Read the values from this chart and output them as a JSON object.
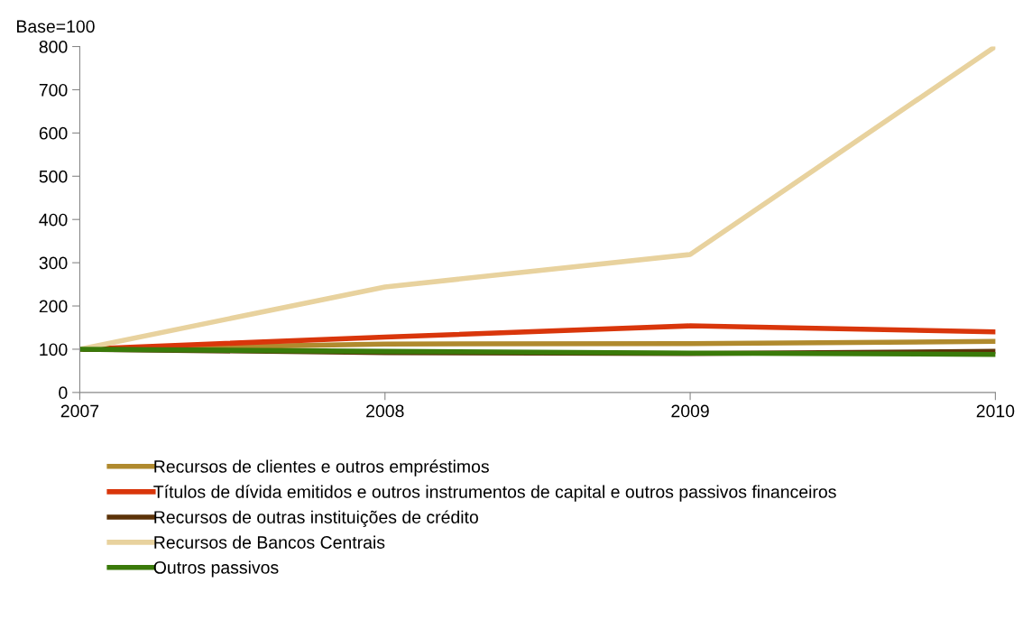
{
  "chart_data": {
    "type": "line",
    "ylabel": "Base=100",
    "x": [
      2007,
      2008,
      2009,
      2010
    ],
    "xlim": [
      2007,
      2010
    ],
    "xticks": [
      2007,
      2008,
      2009,
      2010
    ],
    "ylim": [
      0,
      800
    ],
    "yticks": [
      0,
      100,
      200,
      300,
      400,
      500,
      600,
      700,
      800
    ],
    "grid": false,
    "legend": "bottom",
    "marker": "none",
    "line_style": "solid",
    "series": [
      {
        "name": "Recursos de clientes e outros empréstimos",
        "color": "#b08a2e",
        "values": [
          100,
          112,
          113,
          118
        ]
      },
      {
        "name": "Títulos de dívida emitidos e outros instrumentos de capital e outros passivos financeiros",
        "color": "#d9360b",
        "values": [
          100,
          128,
          154,
          140
        ]
      },
      {
        "name": "Recursos de outras instituições de crédito",
        "color": "#5c3208",
        "values": [
          100,
          92,
          90,
          95
        ]
      },
      {
        "name": "Recursos de Bancos Centrais",
        "color": "#e8d29e",
        "values": [
          100,
          244,
          319,
          800
        ]
      },
      {
        "name": "Outros passivos",
        "color": "#3a7a0a",
        "values": [
          100,
          95,
          91,
          88
        ]
      }
    ]
  }
}
